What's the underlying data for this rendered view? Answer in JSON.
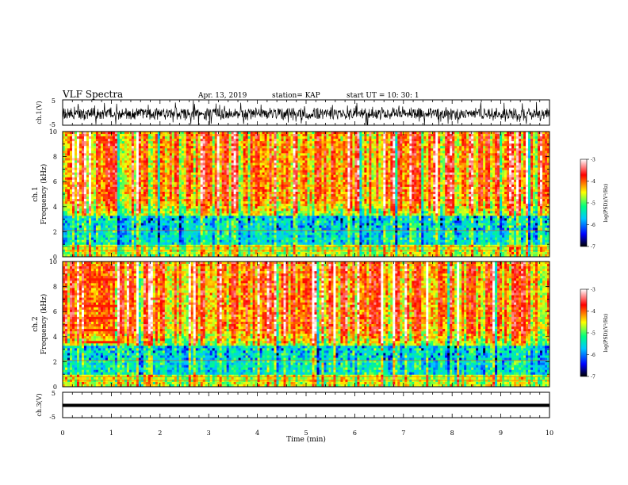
{
  "header": {
    "title": "VLF Spectra",
    "date": "Apr. 13, 2019",
    "station": "station= KAP",
    "start": "start  UT =   10: 30: 1"
  },
  "chart_data": {
    "type": "heatmap",
    "x_axis": {
      "label": "Time (min)",
      "range": [
        0,
        10
      ],
      "ticks": [
        "0",
        "1",
        "2",
        "3",
        "4",
        "5",
        "6",
        "7",
        "8",
        "9",
        "10"
      ]
    },
    "panels": [
      {
        "id": "ch1-waveform",
        "ylabel": "ch.1(V)",
        "ylim": [
          -5,
          5
        ],
        "yticks": [
          "5",
          "-5"
        ],
        "kind": "waveform"
      },
      {
        "id": "ch1-spectrogram",
        "ylabel_line1": "ch.1",
        "ylabel_line2": "Frequency (kHz)",
        "ylim": [
          0,
          10
        ],
        "yticks": [
          "0",
          "2",
          "4",
          "6",
          "8",
          "10"
        ],
        "kind": "spectrogram"
      },
      {
        "id": "ch2-spectrogram",
        "ylabel_line1": "ch.2",
        "ylabel_line2": "Frequency (kHz)",
        "ylim": [
          0,
          10
        ],
        "yticks": [
          "0",
          "2",
          "4",
          "6",
          "8",
          "10"
        ],
        "kind": "spectrogram"
      },
      {
        "id": "ch3-waveform",
        "ylabel": "ch.3(V)",
        "ylim": [
          -5,
          5
        ],
        "yticks": [
          "5",
          "-5"
        ],
        "kind": "waveform"
      }
    ],
    "colorbar": {
      "label": "log(PSD)(V²/Hz)",
      "range": [
        -7,
        -3
      ],
      "ticks": [
        "-3",
        "-4",
        "-5",
        "-6",
        "-7"
      ]
    },
    "colormap": [
      "#000000",
      "#0000ff",
      "#00c8ff",
      "#00ff80",
      "#ffff00",
      "#ff0000",
      "#ffffff"
    ]
  }
}
